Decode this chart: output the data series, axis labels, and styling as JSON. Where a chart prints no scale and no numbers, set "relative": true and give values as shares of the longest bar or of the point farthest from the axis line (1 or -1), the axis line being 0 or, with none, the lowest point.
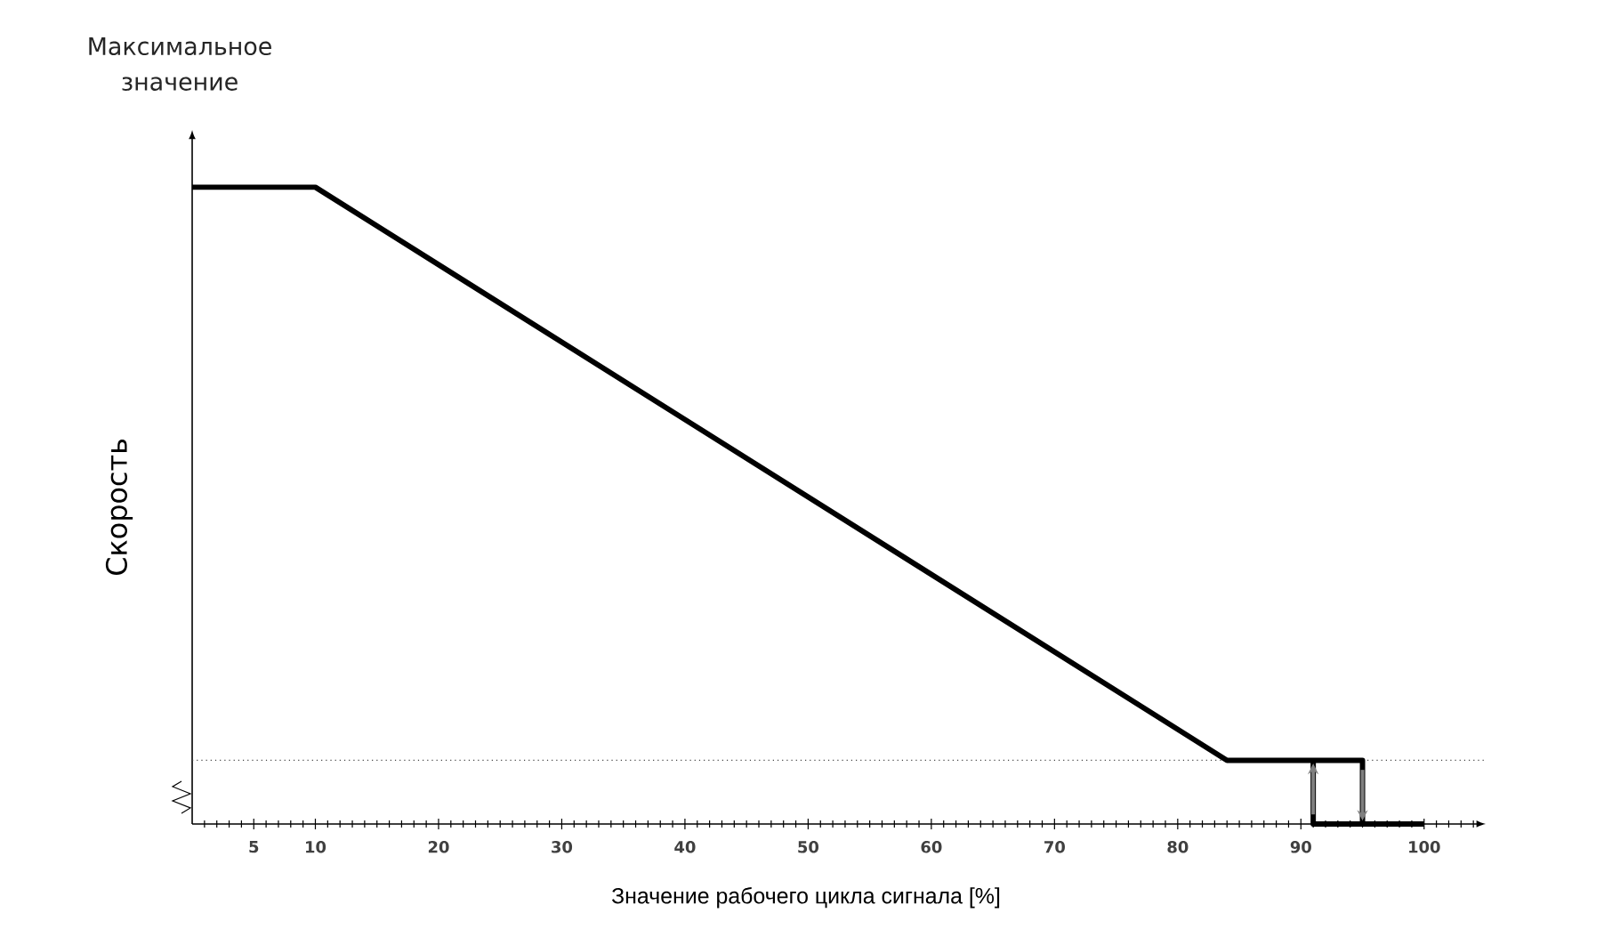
{
  "chart_data": {
    "type": "line",
    "relative": true,
    "xlabel": "Значение рабочего цикла сигнала [%]",
    "ylabel": "Скорость",
    "annotations": [
      "Максимальное значение"
    ],
    "xlim": [
      0,
      105
    ],
    "xticks": [
      5,
      10,
      20,
      30,
      40,
      50,
      60,
      70,
      80,
      90,
      100
    ],
    "series": [
      {
        "color": "#000000",
        "x": [
          0,
          10,
          84,
          95,
          95
        ],
        "values": [
          1,
          1,
          0.1,
          0.1,
          0
        ]
      },
      {
        "color": "#000000",
        "x": [
          100,
          91,
          91
        ],
        "values": [
          0,
          0,
          0.1
        ]
      }
    ],
    "ref_lines": [
      {
        "axis": "y",
        "value": 0.1,
        "color": "#444444",
        "line_style": "dotted"
      }
    ],
    "marker": "none",
    "line_style": "solid"
  }
}
